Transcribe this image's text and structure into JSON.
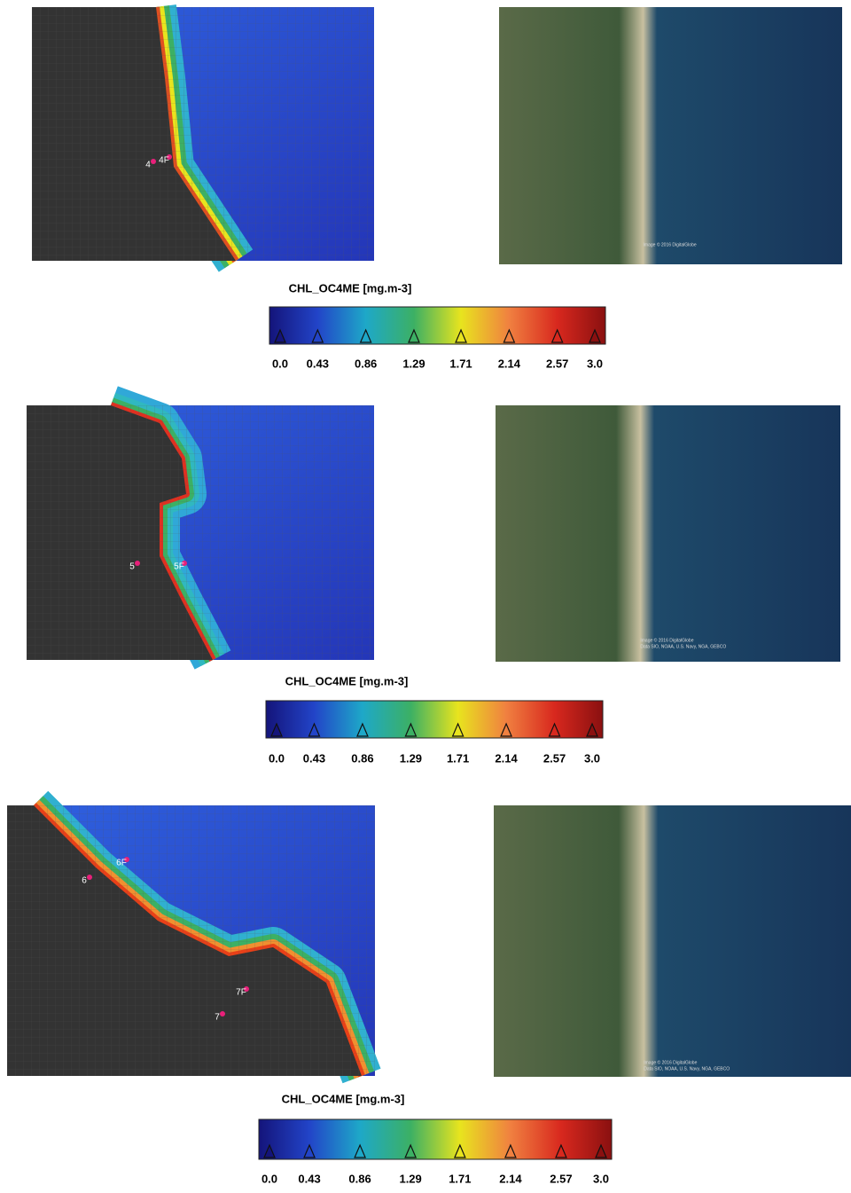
{
  "colormap": [
    "#14147a",
    "#2244c8",
    "#1ea8c8",
    "#3cb064",
    "#e8e41e",
    "#f08040",
    "#d8281e",
    "#8a1010"
  ],
  "panels": [
    {
      "stations": [
        "4",
        "4F"
      ],
      "credits": [
        "Image © 2016 DigitalGlobe"
      ],
      "colorbar": {
        "label": "CHL_OC4ME [mg.m-3]",
        "lim": [
          0,
          3
        ],
        "ticks": [
          {
            "value": 0,
            "label": "0.0"
          },
          0.43,
          0.86,
          1.29,
          1.71,
          2.14,
          2.57,
          {
            "value": 3,
            "label": "3.0"
          }
        ]
      }
    },
    {
      "stations": [
        "5",
        "5F"
      ],
      "credits": [
        "Image © 2016 DigitalGlobe",
        "Data SIO, NOAA, U.S. Navy, NGA, GEBCO"
      ],
      "colorbar": {
        "label": "CHL_OC4ME [mg.m-3]",
        "lim": [
          0,
          3
        ],
        "ticks": [
          {
            "value": 0,
            "label": "0.0"
          },
          0.43,
          0.86,
          1.29,
          1.71,
          2.14,
          2.57,
          {
            "value": 3,
            "label": "3.0"
          }
        ]
      }
    },
    {
      "stations": [
        "6",
        "6F",
        "7",
        "7F"
      ],
      "credits": [
        "Image © 2016 DigitalGlobe",
        "Data SIO, NOAA, U.S. Navy, NGA, GEBCO"
      ],
      "colorbar": {
        "label": "CHL_OC4ME [mg.m-3]",
        "lim": [
          0,
          3
        ],
        "ticks": [
          {
            "value": 0,
            "label": "0.0"
          },
          0.43,
          0.86,
          1.29,
          1.71,
          2.14,
          2.57,
          {
            "value": 3,
            "label": "3.0"
          }
        ]
      }
    }
  ]
}
